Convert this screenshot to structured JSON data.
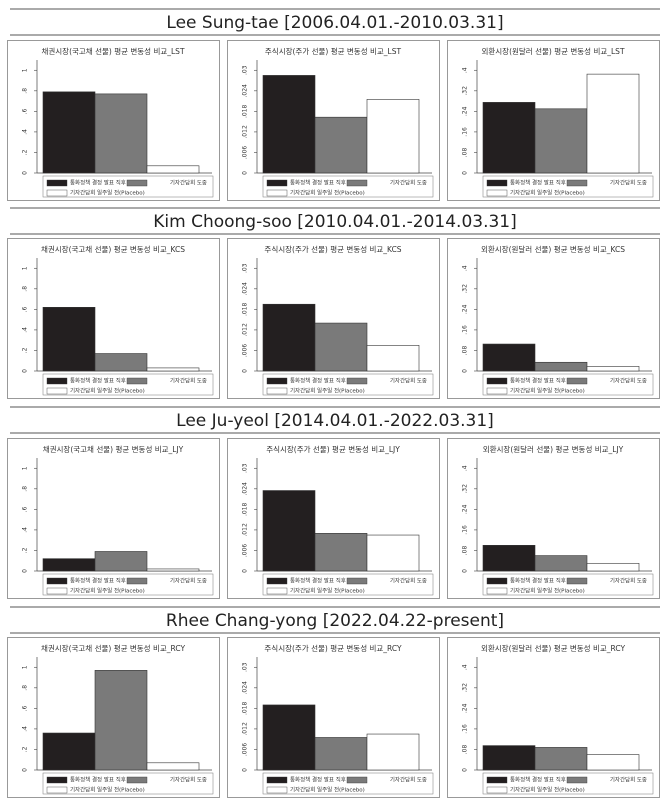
{
  "sections": [
    "Lee Sung-tae [2006.04.01.-2010.03.31]",
    "Kim Choong-soo [2010.04.01.-2014.03.31]",
    "Lee Ju-yeol [2014.04.01.-2022.03.31]",
    "Rhee Chang-yong [2022.04.22-present]"
  ],
  "chart_data": [
    {
      "type": "bar",
      "title": "채권시장(국고채 선물) 평균 변동성 비교_LST",
      "categories": [
        null
      ],
      "ylim": [
        0,
        1.1
      ],
      "yticks": [
        0,
        {
          "value": 0.2,
          "label": ".2"
        },
        {
          "value": 0.4,
          "label": ".4"
        },
        {
          "value": 0.6,
          "label": ".6"
        },
        {
          "value": 0.8,
          "label": ".8"
        },
        1
      ],
      "series": [
        {
          "name": "통화정책 결정 발표 직후",
          "color": "#231f20",
          "values": [
            0.79
          ]
        },
        {
          "name": "기자간담회 도중",
          "color": "#7a7a7a",
          "values": [
            0.77
          ]
        },
        {
          "name": "기자간담회 일주일 전(Placebo)",
          "color": "#ffffff",
          "values": [
            0.07
          ]
        }
      ]
    },
    {
      "type": "bar",
      "title": "주식시장(주가 선물) 평균 변동성 비교_LST",
      "categories": [
        null
      ],
      "ylim": [
        0,
        0.033
      ],
      "yticks": [
        0,
        {
          "value": 0.006,
          "label": ".006"
        },
        {
          "value": 0.012,
          "label": ".012"
        },
        {
          "value": 0.018,
          "label": ".018"
        },
        {
          "value": 0.024,
          "label": ".024"
        },
        {
          "value": 0.03,
          "label": ".03"
        }
      ],
      "series": [
        {
          "name": "통화정책 결정 발표 직후",
          "color": "#231f20",
          "values": [
            0.0285
          ]
        },
        {
          "name": "기자간담회 도중",
          "color": "#7a7a7a",
          "values": [
            0.0163
          ]
        },
        {
          "name": "기자간담회 일주일 전(Placebo)",
          "color": "#ffffff",
          "values": [
            0.0215
          ]
        }
      ]
    },
    {
      "type": "bar",
      "title": "외환시장(원달러 선물) 평균 변동성 비교_LST",
      "categories": [
        null
      ],
      "ylim": [
        0,
        0.44
      ],
      "yticks": [
        0,
        {
          "value": 0.08,
          "label": ".08"
        },
        {
          "value": 0.16,
          "label": ".16"
        },
        {
          "value": 0.24,
          "label": ".24"
        },
        {
          "value": 0.32,
          "label": ".32"
        },
        {
          "value": 0.4,
          "label": ".4"
        }
      ],
      "series": [
        {
          "name": "통화정책 결정 발표 직후",
          "color": "#231f20",
          "values": [
            0.275
          ]
        },
        {
          "name": "기자간담회 도중",
          "color": "#7a7a7a",
          "values": [
            0.25
          ]
        },
        {
          "name": "기자간담회 일주일 전(Placebo)",
          "color": "#ffffff",
          "values": [
            0.385
          ]
        }
      ]
    },
    {
      "type": "bar",
      "title": "채권시장(국고채 선물) 평균 변동성 비교_KCS",
      "categories": [
        null
      ],
      "ylim": [
        0,
        1.1
      ],
      "yticks": [
        0,
        {
          "value": 0.2,
          "label": ".2"
        },
        {
          "value": 0.4,
          "label": ".4"
        },
        {
          "value": 0.6,
          "label": ".6"
        },
        {
          "value": 0.8,
          "label": ".8"
        },
        1
      ],
      "series": [
        {
          "name": "통화정책 결정 발표 직후",
          "color": "#231f20",
          "values": [
            0.62
          ]
        },
        {
          "name": "기자간담회 도중",
          "color": "#7a7a7a",
          "values": [
            0.17
          ]
        },
        {
          "name": "기자간담회 일주일 전(Placebo)",
          "color": "#ffffff",
          "values": [
            0.03
          ]
        }
      ]
    },
    {
      "type": "bar",
      "title": "주식시장(주가 선물) 평균 변동성 비교_KCS",
      "categories": [
        null
      ],
      "ylim": [
        0,
        0.033
      ],
      "yticks": [
        0,
        {
          "value": 0.006,
          "label": ".006"
        },
        {
          "value": 0.012,
          "label": ".012"
        },
        {
          "value": 0.018,
          "label": ".018"
        },
        {
          "value": 0.024,
          "label": ".024"
        },
        {
          "value": 0.03,
          "label": ".03"
        }
      ],
      "series": [
        {
          "name": "통화정책 결정 발표 직후",
          "color": "#231f20",
          "values": [
            0.0195
          ]
        },
        {
          "name": "기자간담회 도중",
          "color": "#7a7a7a",
          "values": [
            0.014
          ]
        },
        {
          "name": "기자간담회 일주일 전(Placebo)",
          "color": "#ffffff",
          "values": [
            0.0075
          ]
        }
      ]
    },
    {
      "type": "bar",
      "title": "외환시장(원달러 선물) 평균 변동성 비교_KCS",
      "categories": [
        null
      ],
      "ylim": [
        0,
        0.44
      ],
      "yticks": [
        0,
        {
          "value": 0.08,
          "label": ".08"
        },
        {
          "value": 0.16,
          "label": ".16"
        },
        {
          "value": 0.24,
          "label": ".24"
        },
        {
          "value": 0.32,
          "label": ".32"
        },
        {
          "value": 0.4,
          "label": ".4"
        }
      ],
      "series": [
        {
          "name": "통화정책 결정 발표 직후",
          "color": "#231f20",
          "values": [
            0.105
          ]
        },
        {
          "name": "기자간담회 도중",
          "color": "#7a7a7a",
          "values": [
            0.034
          ]
        },
        {
          "name": "기자간담회 일주일 전(Placebo)",
          "color": "#ffffff",
          "values": [
            0.018
          ]
        }
      ]
    },
    {
      "type": "bar",
      "title": "채권시장(국고채 선물) 평균 변동성 비교_LJY",
      "categories": [
        null
      ],
      "ylim": [
        0,
        1.1
      ],
      "yticks": [
        0,
        {
          "value": 0.2,
          "label": ".2"
        },
        {
          "value": 0.4,
          "label": ".4"
        },
        {
          "value": 0.6,
          "label": ".6"
        },
        {
          "value": 0.8,
          "label": ".8"
        },
        1
      ],
      "series": [
        {
          "name": "통화정책 결정 발표 직후",
          "color": "#231f20",
          "values": [
            0.12
          ]
        },
        {
          "name": "기자간담회 도중",
          "color": "#7a7a7a",
          "values": [
            0.19
          ]
        },
        {
          "name": "기자간담회 일주일 전(Placebo)",
          "color": "#ffffff",
          "values": [
            0.02
          ]
        }
      ]
    },
    {
      "type": "bar",
      "title": "주식시장(주가 선물) 평균 변동성 비교_LJY",
      "categories": [
        null
      ],
      "ylim": [
        0,
        0.033
      ],
      "yticks": [
        0,
        {
          "value": 0.006,
          "label": ".006"
        },
        {
          "value": 0.012,
          "label": ".012"
        },
        {
          "value": 0.018,
          "label": ".018"
        },
        {
          "value": 0.024,
          "label": ".024"
        },
        {
          "value": 0.03,
          "label": ".03"
        }
      ],
      "series": [
        {
          "name": "통화정책 결정 발표 직후",
          "color": "#231f20",
          "values": [
            0.0235
          ]
        },
        {
          "name": "기자간담회 도중",
          "color": "#7a7a7a",
          "values": [
            0.011
          ]
        },
        {
          "name": "기자간담회 일주일 전(Placebo)",
          "color": "#ffffff",
          "values": [
            0.0105
          ]
        }
      ]
    },
    {
      "type": "bar",
      "title": "외환시장(원달러 선물) 평균 변동성 비교_LJY",
      "categories": [
        null
      ],
      "ylim": [
        0,
        0.44
      ],
      "yticks": [
        0,
        {
          "value": 0.08,
          "label": ".08"
        },
        {
          "value": 0.16,
          "label": ".16"
        },
        {
          "value": 0.24,
          "label": ".24"
        },
        {
          "value": 0.32,
          "label": ".32"
        },
        {
          "value": 0.4,
          "label": ".4"
        }
      ],
      "series": [
        {
          "name": "통화정책 결정 발표 직후",
          "color": "#231f20",
          "values": [
            0.1
          ]
        },
        {
          "name": "기자간담회 도중",
          "color": "#7a7a7a",
          "values": [
            0.06
          ]
        },
        {
          "name": "기자간담회 일주일 전(Placebo)",
          "color": "#ffffff",
          "values": [
            0.03
          ]
        }
      ]
    },
    {
      "type": "bar",
      "title": "채권시장(국고채 선물) 평균 변동성 비교_RCY",
      "categories": [
        null
      ],
      "ylim": [
        0,
        1.1
      ],
      "yticks": [
        0,
        {
          "value": 0.2,
          "label": ".2"
        },
        {
          "value": 0.4,
          "label": ".4"
        },
        {
          "value": 0.6,
          "label": ".6"
        },
        {
          "value": 0.8,
          "label": ".8"
        },
        1
      ],
      "series": [
        {
          "name": "통화정책 결정 발표 직후",
          "color": "#231f20",
          "values": [
            0.36
          ]
        },
        {
          "name": "기자간담회 도중",
          "color": "#7a7a7a",
          "values": [
            0.97
          ]
        },
        {
          "name": "기자간담회 일주일 전(Placebo)",
          "color": "#ffffff",
          "values": [
            0.07
          ]
        }
      ]
    },
    {
      "type": "bar",
      "title": "주식시장(주가 선물) 평균 변동성 비교_RCY",
      "categories": [
        null
      ],
      "ylim": [
        0,
        0.033
      ],
      "yticks": [
        0,
        {
          "value": 0.006,
          "label": ".006"
        },
        {
          "value": 0.012,
          "label": ".012"
        },
        {
          "value": 0.018,
          "label": ".018"
        },
        {
          "value": 0.024,
          "label": ".024"
        },
        {
          "value": 0.03,
          "label": ".03"
        }
      ],
      "series": [
        {
          "name": "통화정책 결정 발표 직후",
          "color": "#231f20",
          "values": [
            0.019
          ]
        },
        {
          "name": "기자간담회 도중",
          "color": "#7a7a7a",
          "values": [
            0.0095
          ]
        },
        {
          "name": "기자간담회 일주일 전(Placebo)",
          "color": "#ffffff",
          "values": [
            0.0105
          ]
        }
      ]
    },
    {
      "type": "bar",
      "title": "외환시장(원달러 선물) 평균 변동성 비교_RCY",
      "categories": [
        null
      ],
      "ylim": [
        0,
        0.44
      ],
      "yticks": [
        0,
        {
          "value": 0.08,
          "label": ".08"
        },
        {
          "value": 0.16,
          "label": ".16"
        },
        {
          "value": 0.24,
          "label": ".24"
        },
        {
          "value": 0.32,
          "label": ".32"
        },
        {
          "value": 0.4,
          "label": ".4"
        }
      ],
      "series": [
        {
          "name": "통화정책 결정 발표 직후",
          "color": "#231f20",
          "values": [
            0.095
          ]
        },
        {
          "name": "기자간담회 도중",
          "color": "#7a7a7a",
          "values": [
            0.088
          ]
        },
        {
          "name": "기자간담회 일주일 전(Placebo)",
          "color": "#ffffff",
          "values": [
            0.06
          ]
        }
      ]
    }
  ]
}
